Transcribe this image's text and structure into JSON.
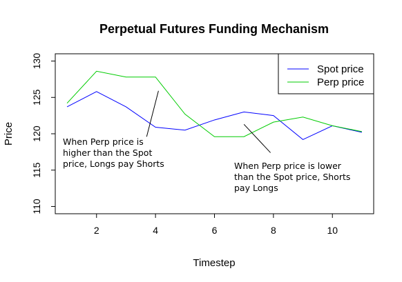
{
  "chart_data": {
    "type": "line",
    "title": "Perpetual Futures Funding Mechanism",
    "xlabel": "Timestep",
    "ylabel": "Price",
    "xlim": [
      0.6,
      11.4
    ],
    "ylim": [
      109,
      131
    ],
    "x_ticks": [
      2,
      4,
      6,
      8,
      10
    ],
    "y_ticks": [
      110,
      115,
      120,
      125,
      130
    ],
    "x": [
      1,
      2,
      3,
      4,
      5,
      6,
      7,
      8,
      9,
      10,
      11
    ],
    "series": [
      {
        "name": "Spot price",
        "color": "#0000ff",
        "values": [
          123.7,
          125.8,
          123.7,
          120.9,
          120.5,
          121.9,
          123.0,
          122.5,
          119.2,
          121.1,
          120.2
        ]
      },
      {
        "name": "Perp price",
        "color": "#00cc00",
        "values": [
          124.2,
          128.6,
          127.8,
          127.8,
          122.7,
          119.6,
          119.6,
          121.6,
          122.3,
          121.1,
          120.3
        ]
      }
    ],
    "legend_position": "top-right",
    "grid": false,
    "annotations": [
      {
        "lines": [
          "When Perp price is",
          "higher than the Spot",
          "price, Longs pay Shorts"
        ],
        "arrow_from": [
          3.7,
          119.6
        ],
        "arrow_to": [
          4.1,
          125.9
        ]
      },
      {
        "lines": [
          "When Perp price is lower",
          "than the Spot price, Shorts",
          "pay Longs"
        ],
        "arrow_from": [
          7.9,
          117.4
        ],
        "arrow_to": [
          7.0,
          121.3
        ]
      }
    ]
  }
}
